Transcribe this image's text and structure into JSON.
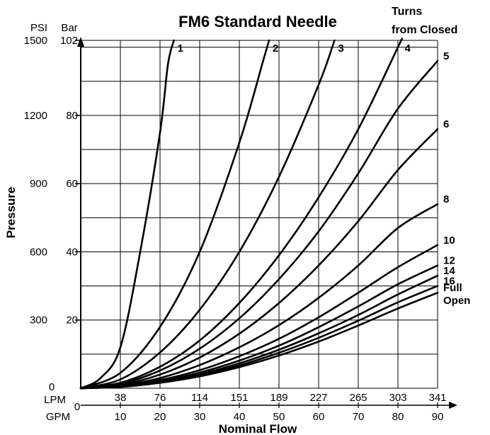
{
  "chart_data": {
    "type": "line",
    "title": "FM6 Standard Needle",
    "legend_title": [
      "Turns",
      "from Closed"
    ],
    "ylabel": "Pressure",
    "xlabel": "Nominal Flow",
    "y_units": [
      "PSI",
      "Bar"
    ],
    "x_units": [
      "LPM",
      "GPM"
    ],
    "xlim": [
      0,
      90
    ],
    "ylim": [
      0,
      102
    ],
    "y_ticks_bar": [
      "102",
      "80",
      "60",
      "40",
      "20"
    ],
    "y_ticks_psi": [
      "1500",
      "1200",
      "900",
      "600",
      "300"
    ],
    "y_zero_label": "0",
    "x_zero_label": "0",
    "x_ticks_gpm": [
      "10",
      "20",
      "30",
      "40",
      "50",
      "60",
      "70",
      "80",
      "90"
    ],
    "x_ticks_lpm": [
      "38",
      "76",
      "114",
      "151",
      "189",
      "227",
      "265",
      "303",
      "341"
    ],
    "grid": true,
    "series": [
      {
        "name": "1",
        "points": [
          [
            0,
            0
          ],
          [
            5,
            3
          ],
          [
            10,
            12
          ],
          [
            15,
            40
          ],
          [
            20,
            75
          ],
          [
            22,
            95
          ],
          [
            23.5,
            102
          ]
        ]
      },
      {
        "name": "2",
        "points": [
          [
            0,
            0
          ],
          [
            10,
            4.5
          ],
          [
            20,
            18
          ],
          [
            30,
            40
          ],
          [
            40,
            72
          ],
          [
            46,
            96
          ],
          [
            47.5,
            102
          ]
        ]
      },
      {
        "name": "3",
        "points": [
          [
            0,
            0
          ],
          [
            10,
            2.6
          ],
          [
            20,
            10.5
          ],
          [
            30,
            23
          ],
          [
            40,
            40
          ],
          [
            50,
            62
          ],
          [
            60,
            89
          ],
          [
            64,
            102
          ]
        ]
      },
      {
        "name": "4",
        "points": [
          [
            0,
            0
          ],
          [
            10,
            1.6
          ],
          [
            20,
            6.3
          ],
          [
            30,
            14
          ],
          [
            40,
            25
          ],
          [
            50,
            39
          ],
          [
            60,
            56
          ],
          [
            70,
            76
          ],
          [
            80,
            100
          ],
          [
            80.8,
            102
          ]
        ]
      },
      {
        "name": "5",
        "points": [
          [
            0,
            0
          ],
          [
            10,
            1.3
          ],
          [
            20,
            5.2
          ],
          [
            30,
            11.6
          ],
          [
            40,
            20.5
          ],
          [
            50,
            32
          ],
          [
            60,
            46
          ],
          [
            70,
            63
          ],
          [
            80,
            82
          ],
          [
            90,
            96
          ]
        ]
      },
      {
        "name": "6",
        "points": [
          [
            0,
            0
          ],
          [
            10,
            1
          ],
          [
            20,
            4
          ],
          [
            30,
            9
          ],
          [
            40,
            16
          ],
          [
            50,
            25
          ],
          [
            60,
            36
          ],
          [
            70,
            49
          ],
          [
            80,
            64
          ],
          [
            90,
            76
          ]
        ]
      },
      {
        "name": "8",
        "points": [
          [
            0,
            0
          ],
          [
            10,
            0.8
          ],
          [
            20,
            3
          ],
          [
            30,
            6.8
          ],
          [
            40,
            12
          ],
          [
            50,
            18.5
          ],
          [
            60,
            26.5
          ],
          [
            70,
            36
          ],
          [
            80,
            47
          ],
          [
            90,
            54
          ]
        ]
      },
      {
        "name": "10",
        "points": [
          [
            0,
            0
          ],
          [
            10,
            0.6
          ],
          [
            20,
            2.4
          ],
          [
            30,
            5.3
          ],
          [
            40,
            9.4
          ],
          [
            50,
            14.5
          ],
          [
            60,
            20.8
          ],
          [
            70,
            28
          ],
          [
            80,
            35.5
          ],
          [
            90,
            42
          ]
        ]
      },
      {
        "name": "12",
        "points": [
          [
            0,
            0
          ],
          [
            10,
            0.5
          ],
          [
            20,
            2
          ],
          [
            30,
            4.6
          ],
          [
            40,
            8.1
          ],
          [
            50,
            12.5
          ],
          [
            60,
            17.9
          ],
          [
            70,
            24
          ],
          [
            80,
            30.5
          ],
          [
            90,
            36
          ]
        ]
      },
      {
        "name": "14",
        "points": [
          [
            0,
            0
          ],
          [
            10,
            0.45
          ],
          [
            20,
            1.8
          ],
          [
            30,
            4.1
          ],
          [
            40,
            7.3
          ],
          [
            50,
            11.3
          ],
          [
            60,
            16.1
          ],
          [
            70,
            21.5
          ],
          [
            80,
            27.5
          ],
          [
            90,
            33
          ]
        ]
      },
      {
        "name": "16",
        "points": [
          [
            0,
            0
          ],
          [
            10,
            0.4
          ],
          [
            20,
            1.7
          ],
          [
            30,
            3.8
          ],
          [
            40,
            6.7
          ],
          [
            50,
            10.4
          ],
          [
            60,
            14.8
          ],
          [
            70,
            19.8
          ],
          [
            80,
            25.2
          ],
          [
            90,
            30
          ]
        ]
      },
      {
        "name": "Full Open",
        "label_lines": [
          "Full",
          "Open"
        ],
        "points": [
          [
            0,
            0
          ],
          [
            10,
            0.4
          ],
          [
            20,
            1.6
          ],
          [
            30,
            3.5
          ],
          [
            40,
            6.2
          ],
          [
            50,
            9.6
          ],
          [
            60,
            13.7
          ],
          [
            70,
            18.4
          ],
          [
            80,
            23.4
          ],
          [
            90,
            28
          ]
        ]
      }
    ]
  }
}
